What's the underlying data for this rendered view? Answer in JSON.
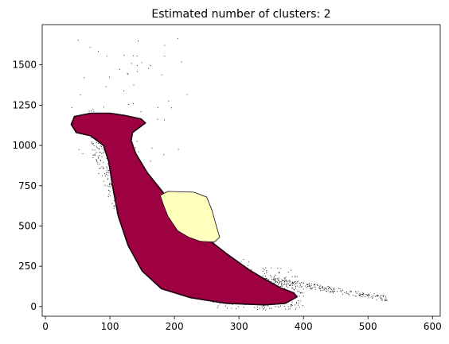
{
  "chart_data": {
    "type": "scatter",
    "title": "Estimated number of clusters: 2",
    "xlabel": "",
    "ylabel": "",
    "xlim": [
      -5,
      612
    ],
    "ylim": [
      -60,
      1750
    ],
    "x_ticks": [
      0,
      100,
      200,
      300,
      400,
      500,
      600
    ],
    "y_ticks": [
      0,
      250,
      500,
      750,
      1000,
      1250,
      1500
    ],
    "grid": false,
    "legend": "none",
    "clusters": [
      {
        "label": "0",
        "color": "#9e0142",
        "outline": [
          [
            40,
            1130
          ],
          [
            45,
            1180
          ],
          [
            70,
            1200
          ],
          [
            100,
            1200
          ],
          [
            125,
            1185
          ],
          [
            148,
            1165
          ],
          [
            155,
            1140
          ],
          [
            145,
            1110
          ],
          [
            135,
            1080
          ],
          [
            133,
            1030
          ],
          [
            140,
            950
          ],
          [
            158,
            830
          ],
          [
            180,
            720
          ],
          [
            205,
            590
          ],
          [
            245,
            440
          ],
          [
            280,
            330
          ],
          [
            315,
            230
          ],
          [
            340,
            170
          ],
          [
            365,
            115
          ],
          [
            385,
            85
          ],
          [
            390,
            60
          ],
          [
            372,
            20
          ],
          [
            340,
            10
          ],
          [
            280,
            20
          ],
          [
            225,
            55
          ],
          [
            180,
            110
          ],
          [
            150,
            220
          ],
          [
            128,
            380
          ],
          [
            113,
            560
          ],
          [
            104,
            750
          ],
          [
            98,
            900
          ],
          [
            90,
            1000
          ],
          [
            70,
            1060
          ],
          [
            48,
            1080
          ]
        ]
      },
      {
        "label": "1",
        "color": "#ffffbe",
        "outline": [
          [
            178,
            690
          ],
          [
            190,
            715
          ],
          [
            230,
            710
          ],
          [
            250,
            680
          ],
          [
            258,
            600
          ],
          [
            265,
            500
          ],
          [
            270,
            430
          ],
          [
            262,
            400
          ],
          [
            240,
            405
          ],
          [
            222,
            430
          ],
          [
            205,
            470
          ],
          [
            190,
            560
          ],
          [
            183,
            630
          ]
        ]
      }
    ],
    "noise_color": "#000000",
    "noise_regions": [
      {
        "x": [
          30,
          420
        ],
        "y": [
          0,
          1200
        ]
      },
      {
        "x": [
          400,
          530
        ],
        "y": [
          50,
          170
        ]
      }
    ]
  }
}
